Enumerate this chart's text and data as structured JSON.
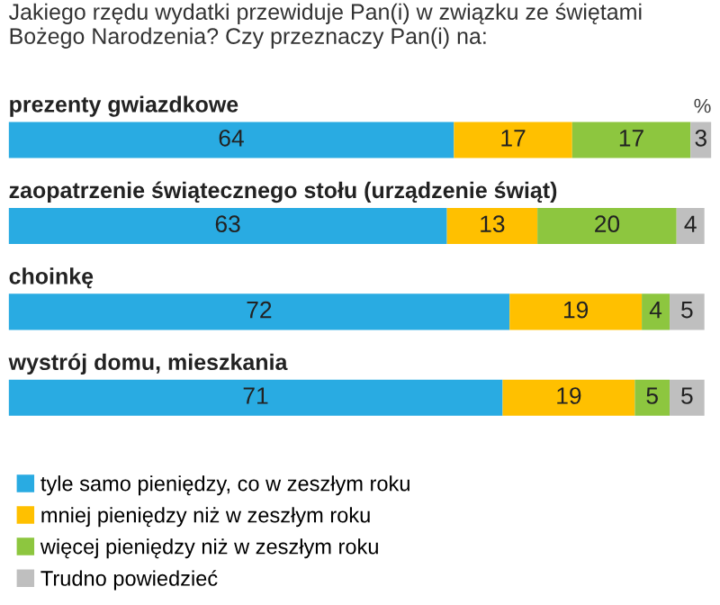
{
  "chart_data": {
    "type": "bar",
    "orientation": "horizontal",
    "stacked": true,
    "data_labels": true,
    "legend": "bottom left",
    "title": "Jakiego rzędu wydatki przewiduje Pan(i) w związku ze świętami Bożego Narodzenia? Czy przeznaczy Pan(i) na:",
    "categories": [
      "prezenty gwiazdkowe",
      "zaopatrzenie świątecznego stołu (urządzenie świąt)",
      "choinkę",
      "wystrój domu, mieszkania"
    ],
    "annotations": [
      "%"
    ],
    "series": [
      {
        "name": "tyle samo pieniędzy, co w zeszłym roku",
        "color": "#29abe2",
        "values": [
          64,
          63,
          72,
          71
        ]
      },
      {
        "name": "mniej pieniędzy niż w zeszłym roku",
        "color": "#ffc000",
        "values": [
          17,
          13,
          19,
          19
        ]
      },
      {
        "name": "więcej pieniędzy niż w zeszłym roku",
        "color": "#8dc63f",
        "values": [
          17,
          20,
          4,
          5
        ]
      },
      {
        "name": "Trudno powiedzieć",
        "color": "#bfbfbf",
        "values": [
          3,
          4,
          5,
          5
        ]
      }
    ]
  }
}
